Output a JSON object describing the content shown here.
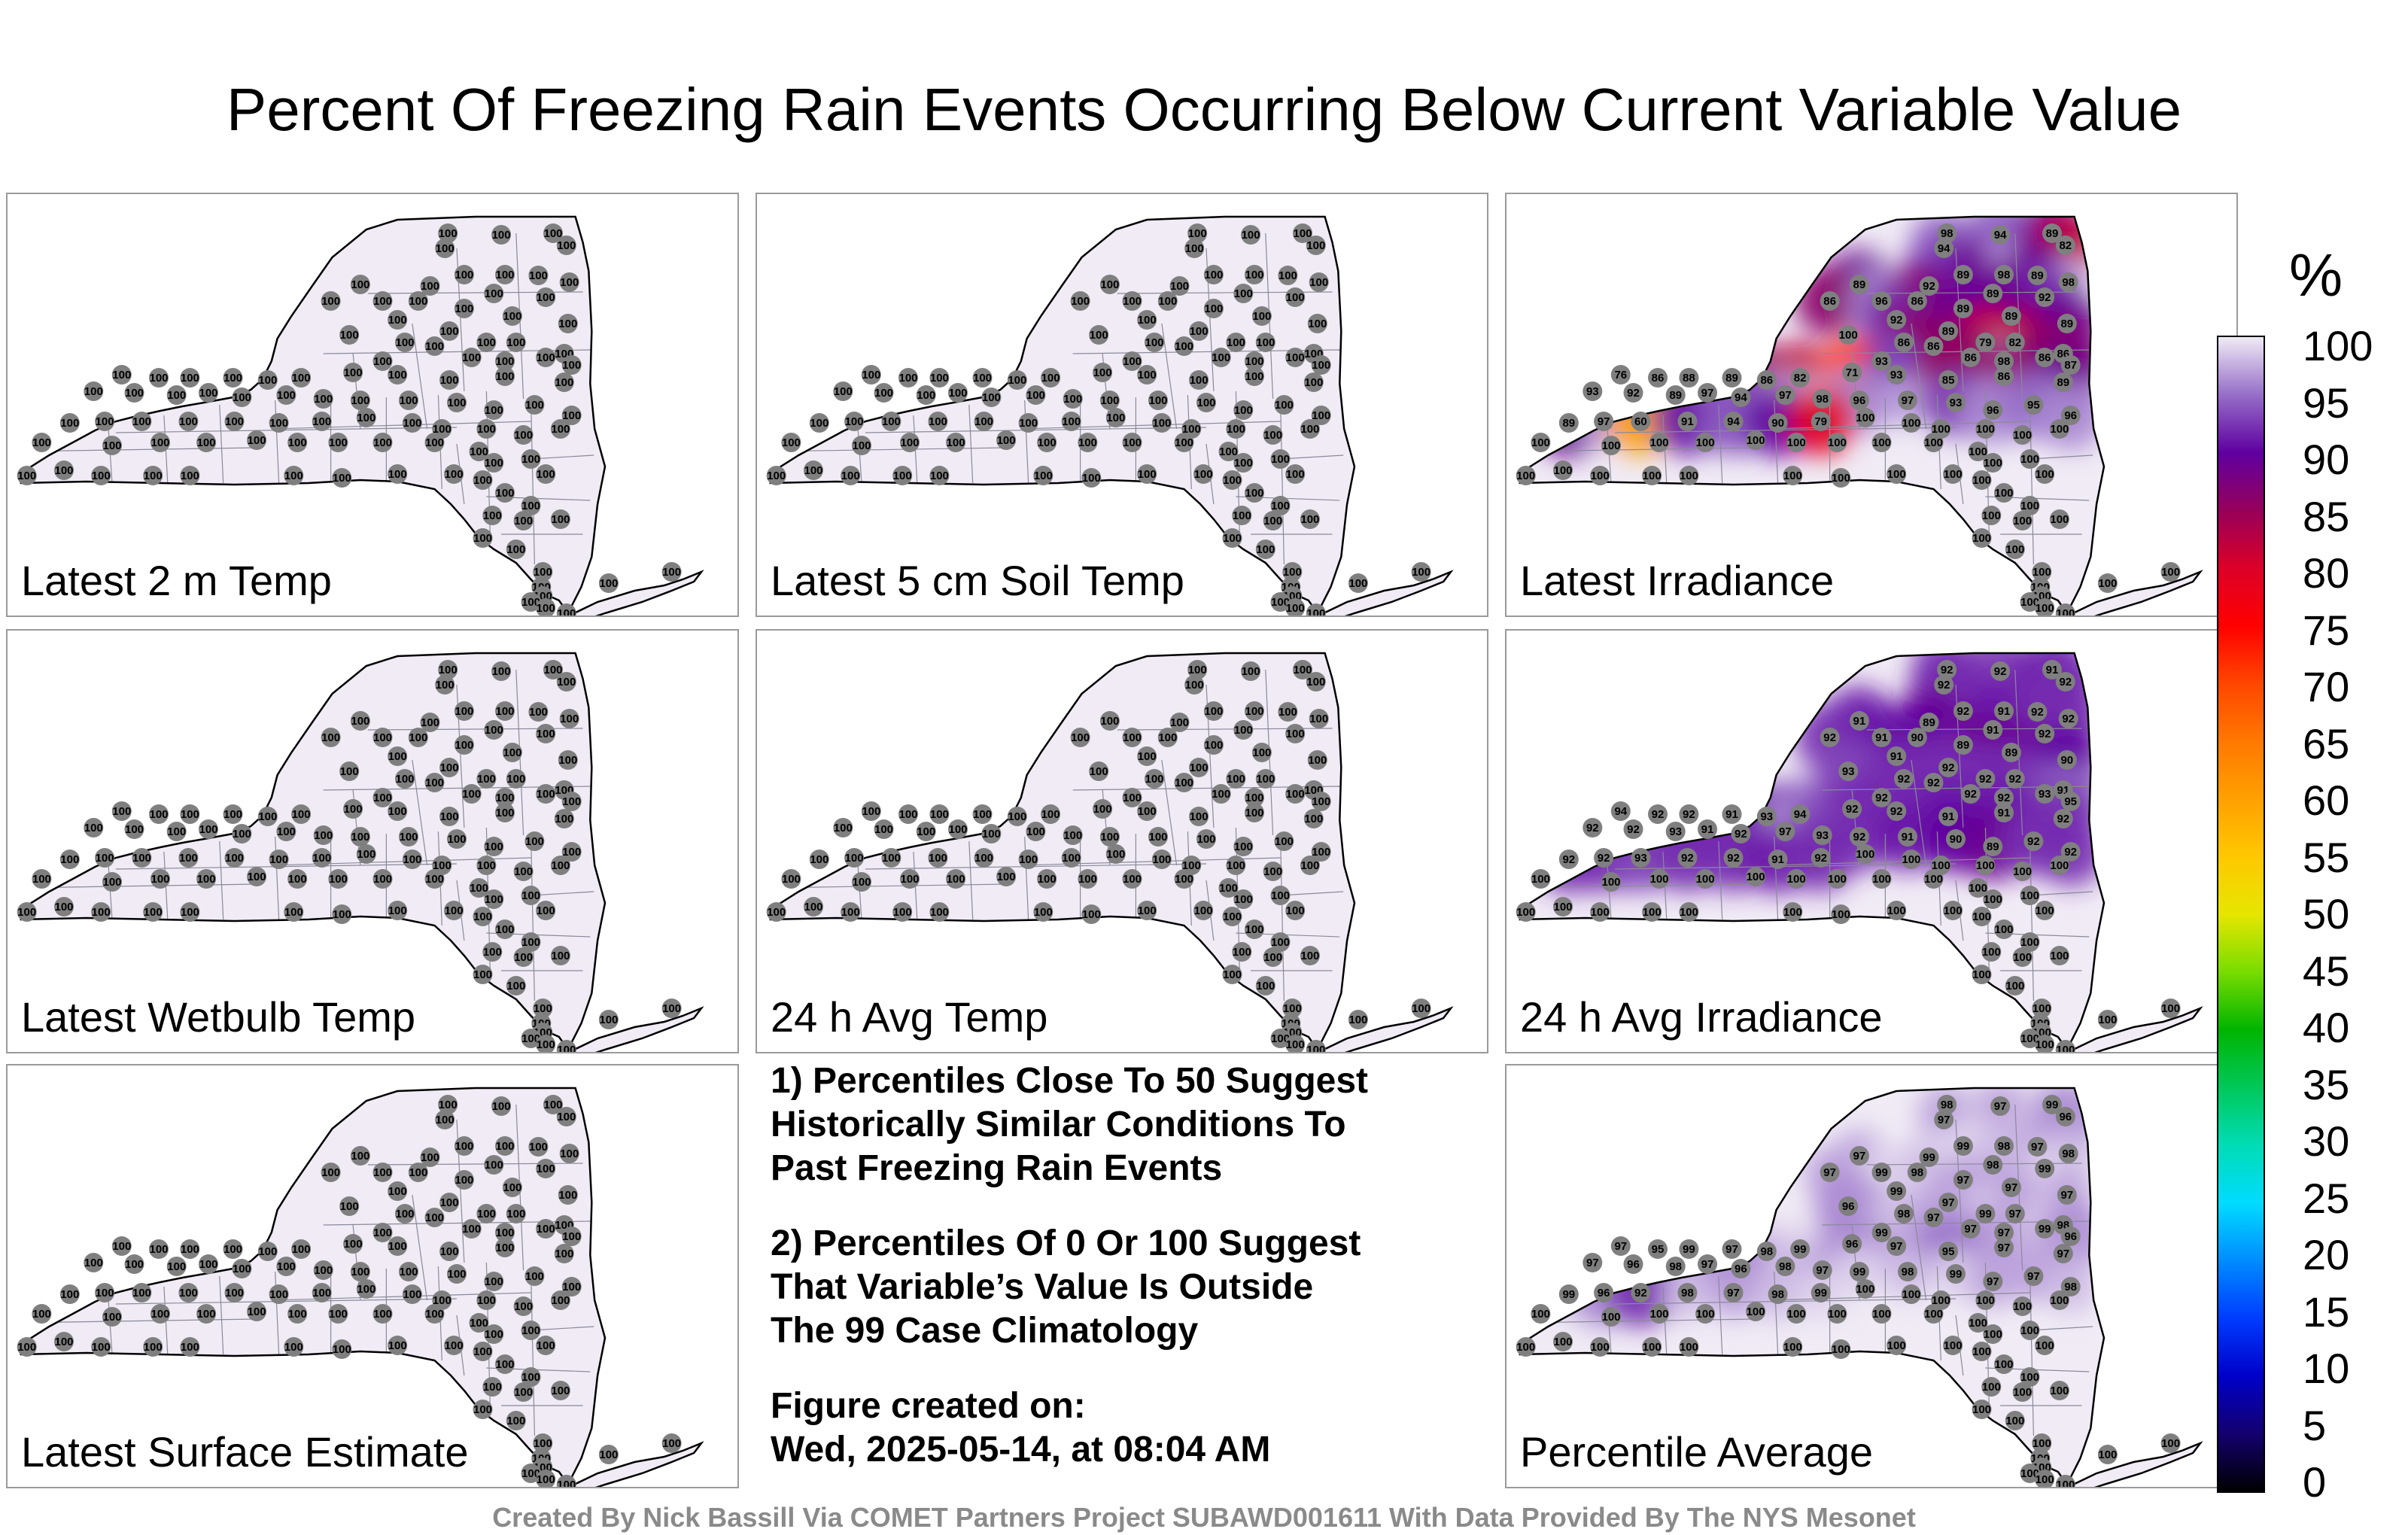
{
  "title": "Percent Of Freezing Rain Events Occurring Below Current Variable Value",
  "panels": [
    {
      "label": "Latest 2 m Temp",
      "uniform": 100,
      "extra": []
    },
    {
      "label": "Latest 5 cm Soil Temp",
      "uniform": 100,
      "extra": []
    },
    {
      "label": "Latest Irradiance",
      "uniform": null,
      "extra": [
        98,
        94,
        89,
        82,
        94,
        89,
        98,
        89,
        98,
        89,
        92,
        89,
        92,
        86,
        96,
        86,
        89,
        89,
        89,
        92,
        89,
        100,
        86,
        86,
        79,
        82,
        86,
        93,
        86,
        98,
        86,
        87,
        76,
        86,
        88,
        89,
        86,
        82,
        71,
        93,
        85,
        86,
        89,
        93,
        92,
        89,
        97,
        94,
        97,
        98,
        96,
        97,
        93,
        96,
        95,
        96,
        89,
        97,
        60,
        91,
        94,
        90,
        79
      ]
    },
    {
      "label": "Latest Wetbulb Temp",
      "uniform": 100,
      "extra": []
    },
    {
      "label": "24 h Avg Temp",
      "uniform": 100,
      "extra": []
    },
    {
      "label": "24 h Avg Irradiance",
      "uniform": null,
      "extra": [
        92,
        92,
        91,
        92,
        92,
        92,
        91,
        92,
        92,
        91,
        89,
        91,
        92,
        92,
        91,
        90,
        89,
        89,
        90,
        91,
        92,
        93,
        92,
        92,
        92,
        92,
        91,
        92,
        92,
        92,
        93,
        95,
        94,
        92,
        92,
        91,
        93,
        94,
        92,
        92,
        91,
        91,
        92,
        92,
        92,
        93,
        91,
        92,
        97,
        93,
        92,
        91,
        90,
        89,
        92,
        92,
        92,
        92,
        93,
        92,
        92,
        91,
        92
      ]
    },
    {
      "label": "Latest Surface Estimate",
      "uniform": 100,
      "extra": []
    },
    {
      "label": "Percentile Average",
      "uniform": null,
      "extra": [
        98,
        97,
        99,
        96,
        97,
        99,
        98,
        97,
        98,
        97,
        99,
        98,
        99,
        97,
        99,
        98,
        97,
        97,
        97,
        99,
        97,
        96,
        98,
        97,
        99,
        97,
        98,
        99,
        97,
        97,
        99,
        96,
        97,
        95,
        99,
        97,
        98,
        99,
        96,
        97,
        95,
        97,
        97,
        97,
        96,
        98,
        97,
        96,
        98,
        97,
        99,
        98,
        99,
        97,
        97,
        98,
        99,
        96,
        92,
        98,
        97,
        98,
        99
      ]
    }
  ],
  "notes": [
    [
      "1) Percentiles Close To 50 Suggest",
      "Historically Similar Conditions To",
      "Past Freezing Rain Events"
    ],
    [
      "2) Percentiles Of 0 Or 100 Suggest",
      "That Variable’s Value Is Outside",
      "The 99 Case Climatology"
    ],
    [
      "Figure created on:",
      "Wed, 2025-05-14, at 08:04 AM"
    ]
  ],
  "colorbar": {
    "unit": "%",
    "min": 0,
    "max": 100,
    "ticks": [
      "100",
      "95",
      "90",
      "85",
      "80",
      "75",
      "70",
      "65",
      "60",
      "55",
      "50",
      "45",
      "40",
      "35",
      "30",
      "25",
      "20",
      "15",
      "10",
      "5",
      "0"
    ]
  },
  "credit": "Created By Nick Bassill Via COMET Partners Project SUBAWD001611 With Data Provided By The NYS Mesonet"
}
